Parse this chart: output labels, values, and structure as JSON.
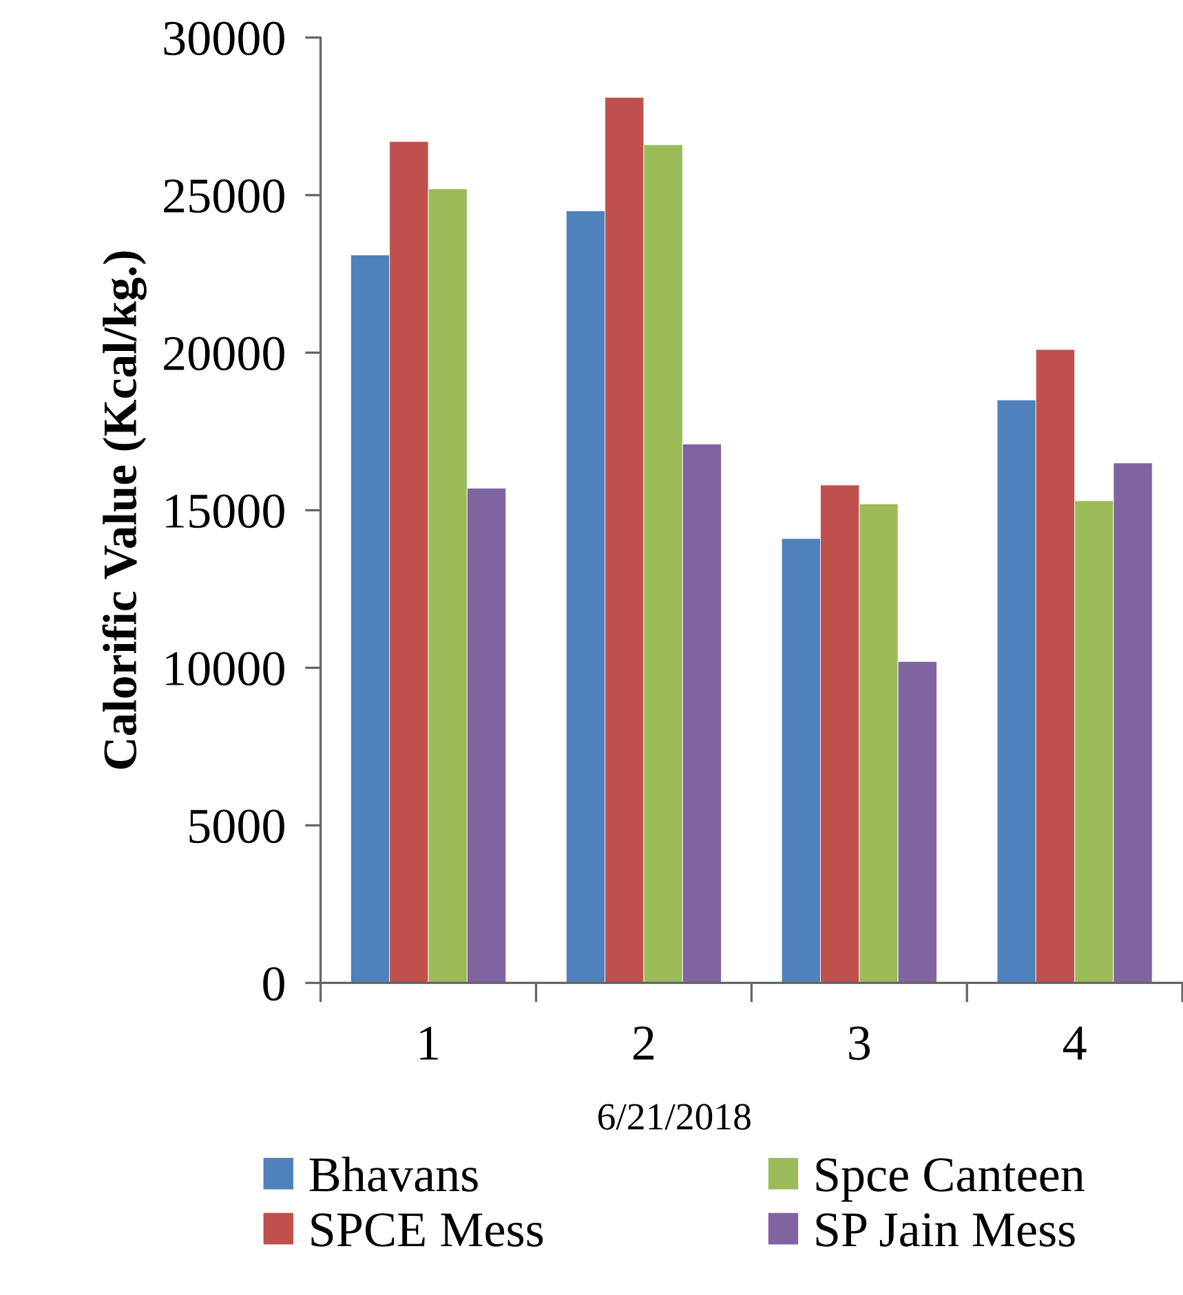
{
  "chart_data": {
    "type": "bar",
    "ylabel": "Calorific Value (Kcal/kg.)",
    "categories": [
      "1",
      "2",
      "3",
      "4"
    ],
    "series": [
      {
        "name": "Bhavans",
        "color": "#4f81bd",
        "values": [
          23100,
          24500,
          14100,
          18500
        ]
      },
      {
        "name": "SPCE Mess",
        "color": "#c0504d",
        "values": [
          26700,
          28100,
          15800,
          20100
        ]
      },
      {
        "name": "Spce Canteen",
        "color": "#9bbb59",
        "values": [
          25200,
          26600,
          15200,
          15300
        ]
      },
      {
        "name": "SP Jain Mess",
        "color": "#8064a2",
        "values": [
          15700,
          17100,
          10200,
          16500
        ]
      }
    ],
    "ylim": [
      0,
      30000
    ],
    "yticks": [
      0,
      5000,
      10000,
      15000,
      20000,
      25000,
      30000
    ],
    "grid": false,
    "legend": "bottom",
    "annotations": [
      "6/21/2018"
    ]
  }
}
